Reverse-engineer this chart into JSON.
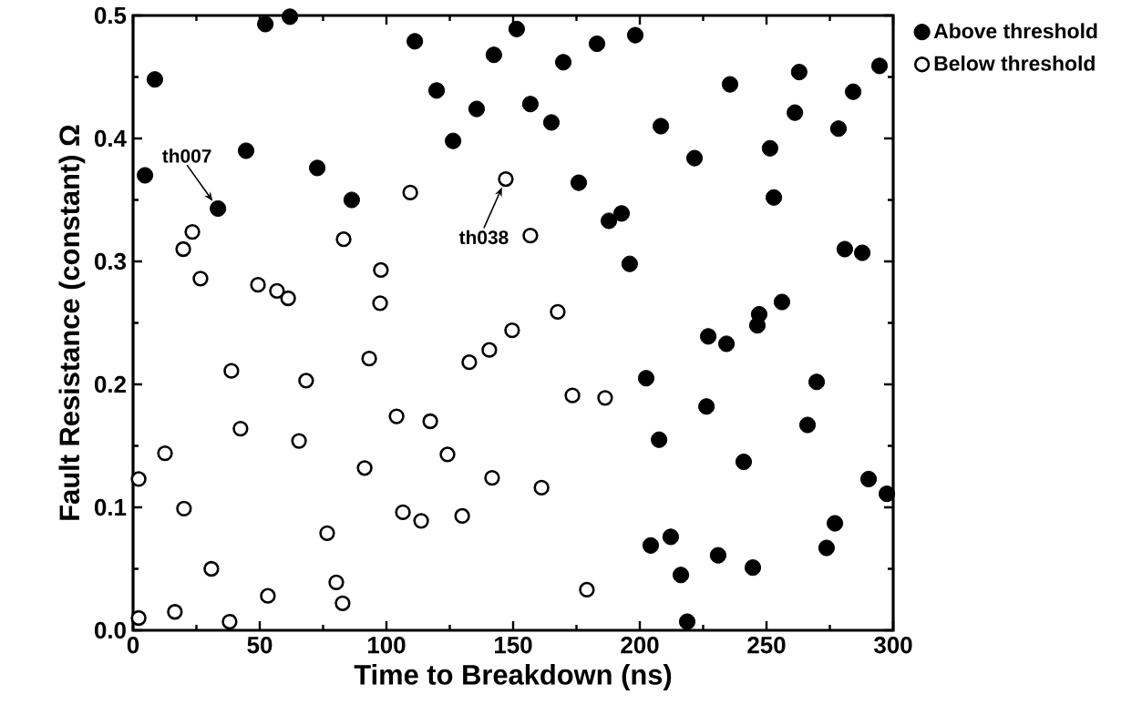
{
  "chart_data": {
    "type": "scatter",
    "xlabel": "Time to Breakdown (ns)",
    "ylabel": "Fault Resistance (constant)  Ω",
    "xlim": [
      0,
      300
    ],
    "ylim": [
      0,
      0.5
    ],
    "xticks": [
      0,
      50,
      100,
      150,
      200,
      250,
      300
    ],
    "yticks": [
      {
        "value": 0,
        "label": "0.0"
      },
      {
        "value": 0.1,
        "label": "0.1"
      },
      {
        "value": 0.2,
        "label": "0.2"
      },
      {
        "value": 0.3,
        "label": "0.3"
      },
      {
        "value": 0.4,
        "label": "0.4"
      },
      {
        "value": 0.5,
        "label": "0.5"
      }
    ],
    "legend": "top right",
    "marker": "circle",
    "series": [
      {
        "name": "Above threshold",
        "color": "#000000",
        "x": [
          4.7,
          8.6,
          33.5,
          44.6,
          52.2,
          61.9,
          72.7,
          86.3,
          111.2,
          119.8,
          126.3,
          135.6,
          142.4,
          151.4,
          156.8,
          165.1,
          169.8,
          175.9,
          183.1,
          187.8,
          192.8,
          196.0,
          198.2,
          202.5,
          204.3,
          207.6,
          208.3,
          212.2,
          216.2,
          218.7,
          221.6,
          226.3,
          227.0,
          230.9,
          234.2,
          235.6,
          241.0,
          244.6,
          246.4,
          247.1,
          251.4,
          252.9,
          256.1,
          261.2,
          262.9,
          266.2,
          269.8,
          273.7,
          277.0,
          278.4,
          280.9,
          284.2,
          287.8,
          290.3,
          294.6,
          297.5
        ],
        "values": [
          0.37,
          0.448,
          0.343,
          0.39,
          0.493,
          0.499,
          0.376,
          0.35,
          0.479,
          0.439,
          0.398,
          0.424,
          0.468,
          0.489,
          0.428,
          0.413,
          0.462,
          0.364,
          0.477,
          0.333,
          0.339,
          0.298,
          0.484,
          0.205,
          0.069,
          0.155,
          0.41,
          0.076,
          0.045,
          0.007,
          0.384,
          0.182,
          0.239,
          0.061,
          0.233,
          0.444,
          0.137,
          0.051,
          0.248,
          0.257,
          0.392,
          0.352,
          0.267,
          0.421,
          0.454,
          0.167,
          0.202,
          0.067,
          0.087,
          0.408,
          0.31,
          0.438,
          0.307,
          0.123,
          0.459,
          0.111
        ]
      },
      {
        "name": "Below threshold",
        "color": "#000000",
        "x": [
          2.2,
          2.2,
          12.6,
          16.5,
          19.8,
          20.1,
          23.4,
          26.6,
          30.9,
          38.1,
          38.8,
          42.4,
          49.3,
          53.2,
          56.8,
          61.2,
          65.5,
          68.3,
          76.6,
          80.2,
          82.7,
          83.1,
          91.4,
          93.2,
          97.5,
          97.8,
          104.0,
          106.5,
          109.4,
          113.7,
          117.3,
          124.1,
          129.9,
          132.7,
          140.6,
          141.7,
          147.1,
          149.6,
          156.8,
          161.2,
          167.6,
          173.4,
          179.1,
          186.3
        ],
        "values": [
          0.123,
          0.01,
          0.144,
          0.015,
          0.31,
          0.099,
          0.324,
          0.286,
          0.05,
          0.007,
          0.211,
          0.164,
          0.281,
          0.028,
          0.276,
          0.27,
          0.154,
          0.203,
          0.079,
          0.039,
          0.022,
          0.318,
          0.132,
          0.221,
          0.266,
          0.293,
          0.174,
          0.096,
          0.356,
          0.089,
          0.17,
          0.143,
          0.093,
          0.218,
          0.228,
          0.124,
          0.367,
          0.244,
          0.321,
          0.116,
          0.259,
          0.191,
          0.033,
          0.189
        ]
      }
    ],
    "annotations": [
      {
        "text": "th007",
        "x": 33.5,
        "y": 0.343
      },
      {
        "text": "th038",
        "x": 147.1,
        "y": 0.367
      }
    ]
  }
}
